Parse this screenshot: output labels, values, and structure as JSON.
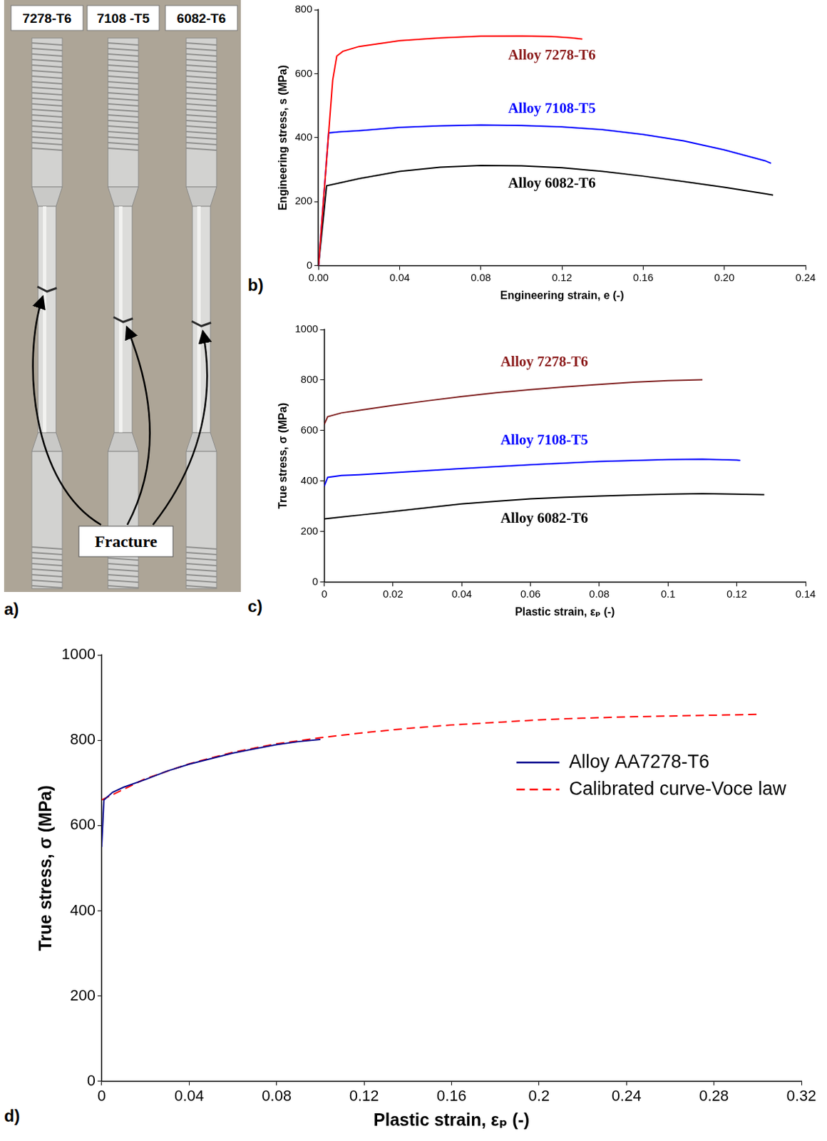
{
  "photo": {
    "panel": "a)",
    "specimens": [
      "7278-T6",
      "7108 -T5",
      "6082-T6"
    ],
    "annotation": "Fracture"
  },
  "chart_data": [
    {
      "panel": "b)",
      "type": "line",
      "x_label": "Engineering strain, e (-)",
      "y_label": "Engineering stress, s (MPa)",
      "xlim": [
        0,
        0.24
      ],
      "xticks": [
        {
          "value": 0,
          "label": "0.00"
        },
        {
          "value": 0.04,
          "label": "0.04"
        },
        {
          "value": 0.08,
          "label": "0.08"
        },
        {
          "value": 0.12,
          "label": "0.12"
        },
        {
          "value": 0.16,
          "label": "0.16"
        },
        {
          "value": 0.2,
          "label": "0.20"
        },
        {
          "value": 0.24,
          "label": "0.24"
        }
      ],
      "ylim": [
        0,
        800
      ],
      "yticks": [
        0,
        200,
        400,
        600,
        800
      ],
      "grid": false,
      "series": [
        {
          "name": "Alloy 7278-T6",
          "color": "#ff0000",
          "x": [
            0,
            0.007,
            0.009,
            0.012,
            0.02,
            0.04,
            0.06,
            0.08,
            0.1,
            0.115,
            0.125,
            0.13
          ],
          "values": [
            0,
            580,
            655,
            670,
            685,
            703,
            712,
            717,
            718,
            716,
            712,
            708
          ]
        },
        {
          "name": "Alloy 7108-T5",
          "color": "#0000ff",
          "x": [
            0,
            0.005,
            0.01,
            0.02,
            0.04,
            0.06,
            0.08,
            0.1,
            0.12,
            0.14,
            0.16,
            0.18,
            0.2,
            0.22,
            0.223
          ],
          "values": [
            0,
            415,
            418,
            422,
            432,
            437,
            440,
            438,
            434,
            425,
            410,
            390,
            362,
            328,
            320
          ]
        },
        {
          "name": "Alloy 6082-T6",
          "color": "#000000",
          "x": [
            0,
            0.004,
            0.01,
            0.02,
            0.04,
            0.06,
            0.08,
            0.1,
            0.12,
            0.14,
            0.16,
            0.18,
            0.2,
            0.22,
            0.224
          ],
          "values": [
            0,
            250,
            258,
            272,
            295,
            308,
            313,
            312,
            306,
            295,
            280,
            263,
            245,
            225,
            221
          ]
        }
      ],
      "annotations": [
        {
          "text": "Alloy 7278-T6",
          "x": 0.115,
          "y": 655,
          "color": "#8b1a1a"
        },
        {
          "text": "Alloy 7108-T5",
          "x": 0.115,
          "y": 490,
          "color": "#0000ff"
        },
        {
          "text": "Alloy 6082-T6",
          "x": 0.115,
          "y": 255,
          "color": "#000000"
        }
      ]
    },
    {
      "panel": "c)",
      "type": "line",
      "x_label": "Plastic strain, εₚ (-)",
      "y_label": "True stress, σ (MPa)",
      "xlim": [
        0,
        0.14
      ],
      "xticks": [
        0,
        0.02,
        0.04,
        0.06,
        0.08,
        0.1,
        0.12,
        0.14
      ],
      "ylim": [
        0,
        1000
      ],
      "yticks": [
        0,
        200,
        400,
        600,
        800,
        1000
      ],
      "grid": false,
      "series": [
        {
          "name": "Alloy 7278-T6",
          "color": "#7f1f1f",
          "x": [
            0,
            0.001,
            0.005,
            0.01,
            0.02,
            0.03,
            0.04,
            0.05,
            0.06,
            0.07,
            0.08,
            0.09,
            0.1,
            0.11
          ],
          "values": [
            625,
            655,
            670,
            680,
            700,
            718,
            735,
            750,
            762,
            773,
            783,
            792,
            798,
            801
          ]
        },
        {
          "name": "Alloy 7108-T5",
          "color": "#0000ff",
          "x": [
            0,
            0.001,
            0.005,
            0.01,
            0.02,
            0.04,
            0.06,
            0.08,
            0.1,
            0.11,
            0.12,
            0.121
          ],
          "values": [
            380,
            415,
            422,
            425,
            433,
            450,
            465,
            478,
            485,
            487,
            483,
            482
          ]
        },
        {
          "name": "Alloy 6082-T6",
          "color": "#000000",
          "x": [
            0,
            0.005,
            0.01,
            0.02,
            0.03,
            0.04,
            0.05,
            0.06,
            0.07,
            0.08,
            0.09,
            0.1,
            0.11,
            0.12,
            0.128
          ],
          "values": [
            250,
            258,
            265,
            280,
            295,
            310,
            320,
            330,
            336,
            341,
            345,
            348,
            350,
            348,
            346
          ]
        }
      ],
      "annotations": [
        {
          "text": "Alloy 7278-T6",
          "x": 0.064,
          "y": 870,
          "color": "#8b1a1a"
        },
        {
          "text": "Alloy 7108-T5",
          "x": 0.064,
          "y": 560,
          "color": "#0000ff"
        },
        {
          "text": "Alloy 6082-T6",
          "x": 0.064,
          "y": 250,
          "color": "#000000"
        }
      ]
    },
    {
      "panel": "d)",
      "type": "line",
      "x_label": "Plastic strain, εₚ (-)",
      "y_label": "True stress, σ (MPa)",
      "xlim": [
        0,
        0.32
      ],
      "xticks": [
        0,
        0.04,
        0.08,
        0.12,
        0.16,
        0.2,
        0.24,
        0.28,
        0.32
      ],
      "ylim": [
        0,
        1000
      ],
      "yticks": [
        0,
        200,
        400,
        600,
        800,
        1000
      ],
      "grid": false,
      "legend": "right",
      "series": [
        {
          "name": "Alloy AA7278-T6",
          "color": "#00008b",
          "line_style": "solid",
          "x": [
            0,
            0.001,
            0.005,
            0.01,
            0.02,
            0.03,
            0.04,
            0.05,
            0.06,
            0.07,
            0.08,
            0.09,
            0.1
          ],
          "values": [
            550,
            660,
            678,
            690,
            708,
            728,
            744,
            757,
            770,
            780,
            790,
            797,
            802
          ]
        },
        {
          "name": "Calibrated curve-Voce law",
          "color": "#ff0000",
          "line_style": "dashed",
          "x": [
            0,
            0.02,
            0.04,
            0.06,
            0.08,
            0.1,
            0.12,
            0.14,
            0.16,
            0.18,
            0.2,
            0.22,
            0.24,
            0.26,
            0.28,
            0.3
          ],
          "values": [
            660,
            710,
            745,
            772,
            792,
            806,
            818,
            828,
            836,
            842,
            848,
            852,
            855,
            857,
            859,
            861
          ]
        }
      ]
    }
  ]
}
